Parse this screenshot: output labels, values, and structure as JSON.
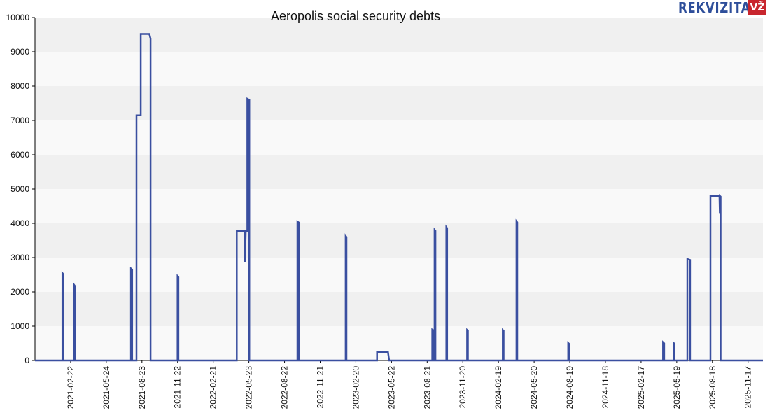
{
  "brand": {
    "name": "REKVIZITAI",
    "badge": "VŽ",
    "color": "#2e4e9a",
    "badge_color": "#c8262e"
  },
  "chart_data": {
    "type": "line",
    "title": "Aeropolis social security debts",
    "xlabel": "",
    "ylabel": "",
    "ylim": [
      0,
      10000
    ],
    "xlim": [
      "2020-11-23",
      "2025-12-25"
    ],
    "yticks": [
      "0",
      "1000",
      "2000",
      "3000",
      "4000",
      "5000",
      "6000",
      "7000",
      "8000",
      "9000",
      "10000"
    ],
    "xticks": [
      "2021-02-22",
      "2021-05-24",
      "2021-08-23",
      "2021-11-22",
      "2022-02-21",
      "2022-05-23",
      "2022-08-22",
      "2022-11-21",
      "2023-02-20",
      "2023-05-22",
      "2023-08-21",
      "2023-11-20",
      "2024-02-19",
      "2024-05-20",
      "2024-08-19",
      "2024-11-18",
      "2025-02-17",
      "2025-05-19",
      "2025-08-18",
      "2025-11-17"
    ],
    "grid": true,
    "legend": "none",
    "line_color": "#3a4fa0",
    "series": [
      {
        "name": "",
        "points": [
          [
            "2020-11-23",
            0
          ],
          [
            "2021-02-01",
            0
          ],
          [
            "2021-02-01",
            2550
          ],
          [
            "2021-02-03",
            2520
          ],
          [
            "2021-02-03",
            0
          ],
          [
            "2021-03-03",
            0
          ],
          [
            "2021-03-03",
            2200
          ],
          [
            "2021-03-05",
            2170
          ],
          [
            "2021-03-05",
            0
          ],
          [
            "2021-07-26",
            0
          ],
          [
            "2021-07-26",
            2680
          ],
          [
            "2021-07-29",
            2650
          ],
          [
            "2021-07-29",
            0
          ],
          [
            "2021-08-09",
            0
          ],
          [
            "2021-08-09",
            7150
          ],
          [
            "2021-08-20",
            7150
          ],
          [
            "2021-08-20",
            9520
          ],
          [
            "2021-09-11",
            9520
          ],
          [
            "2021-09-14",
            9380
          ],
          [
            "2021-09-14",
            0
          ],
          [
            "2021-11-22",
            0
          ],
          [
            "2021-11-22",
            2460
          ],
          [
            "2021-11-24",
            2430
          ],
          [
            "2021-11-24",
            0
          ],
          [
            "2022-04-22",
            0
          ],
          [
            "2022-04-22",
            3770
          ],
          [
            "2022-05-12",
            3770
          ],
          [
            "2022-05-13",
            2870
          ],
          [
            "2022-05-15",
            3770
          ],
          [
            "2022-05-19",
            3770
          ],
          [
            "2022-05-19",
            7630
          ],
          [
            "2022-05-24",
            7600
          ],
          [
            "2022-05-24",
            0
          ],
          [
            "2022-09-24",
            0
          ],
          [
            "2022-09-24",
            4050
          ],
          [
            "2022-09-28",
            4020
          ],
          [
            "2022-09-28",
            0
          ],
          [
            "2023-01-25",
            0
          ],
          [
            "2023-01-25",
            3630
          ],
          [
            "2023-01-27",
            3600
          ],
          [
            "2023-01-27",
            0
          ],
          [
            "2023-04-15",
            0
          ],
          [
            "2023-04-15",
            250
          ],
          [
            "2023-05-13",
            250
          ],
          [
            "2023-05-16",
            0
          ],
          [
            "2023-09-03",
            0
          ],
          [
            "2023-09-03",
            900
          ],
          [
            "2023-09-06",
            880
          ],
          [
            "2023-09-06",
            0
          ],
          [
            "2023-09-09",
            0
          ],
          [
            "2023-09-09",
            3810
          ],
          [
            "2023-09-11",
            3780
          ],
          [
            "2023-09-11",
            0
          ],
          [
            "2023-10-09",
            0
          ],
          [
            "2023-10-09",
            3890
          ],
          [
            "2023-10-11",
            3860
          ],
          [
            "2023-10-11",
            0
          ],
          [
            "2023-12-01",
            0
          ],
          [
            "2023-12-01",
            890
          ],
          [
            "2023-12-03",
            870
          ],
          [
            "2023-12-03",
            0
          ],
          [
            "2024-03-01",
            0
          ],
          [
            "2024-03-01",
            890
          ],
          [
            "2024-03-03",
            870
          ],
          [
            "2024-03-03",
            0
          ],
          [
            "2024-04-05",
            0
          ],
          [
            "2024-04-05",
            4060
          ],
          [
            "2024-04-07",
            4030
          ],
          [
            "2024-04-07",
            0
          ],
          [
            "2024-08-15",
            0
          ],
          [
            "2024-08-15",
            510
          ],
          [
            "2024-08-17",
            490
          ],
          [
            "2024-08-17",
            0
          ],
          [
            "2025-04-14",
            0
          ],
          [
            "2025-04-14",
            530
          ],
          [
            "2025-04-17",
            500
          ],
          [
            "2025-04-17",
            0
          ],
          [
            "2025-05-11",
            0
          ],
          [
            "2025-05-11",
            510
          ],
          [
            "2025-05-13",
            490
          ],
          [
            "2025-05-13",
            0
          ],
          [
            "2025-06-15",
            0
          ],
          [
            "2025-06-15",
            2960
          ],
          [
            "2025-06-22",
            2930
          ],
          [
            "2025-06-22",
            0
          ],
          [
            "2025-08-13",
            0
          ],
          [
            "2025-08-13",
            4800
          ],
          [
            "2025-09-05",
            4800
          ],
          [
            "2025-09-06",
            4300
          ],
          [
            "2025-09-06",
            4800
          ],
          [
            "2025-09-08",
            4780
          ],
          [
            "2025-09-08",
            0
          ],
          [
            "2025-12-25",
            0
          ]
        ]
      }
    ]
  }
}
